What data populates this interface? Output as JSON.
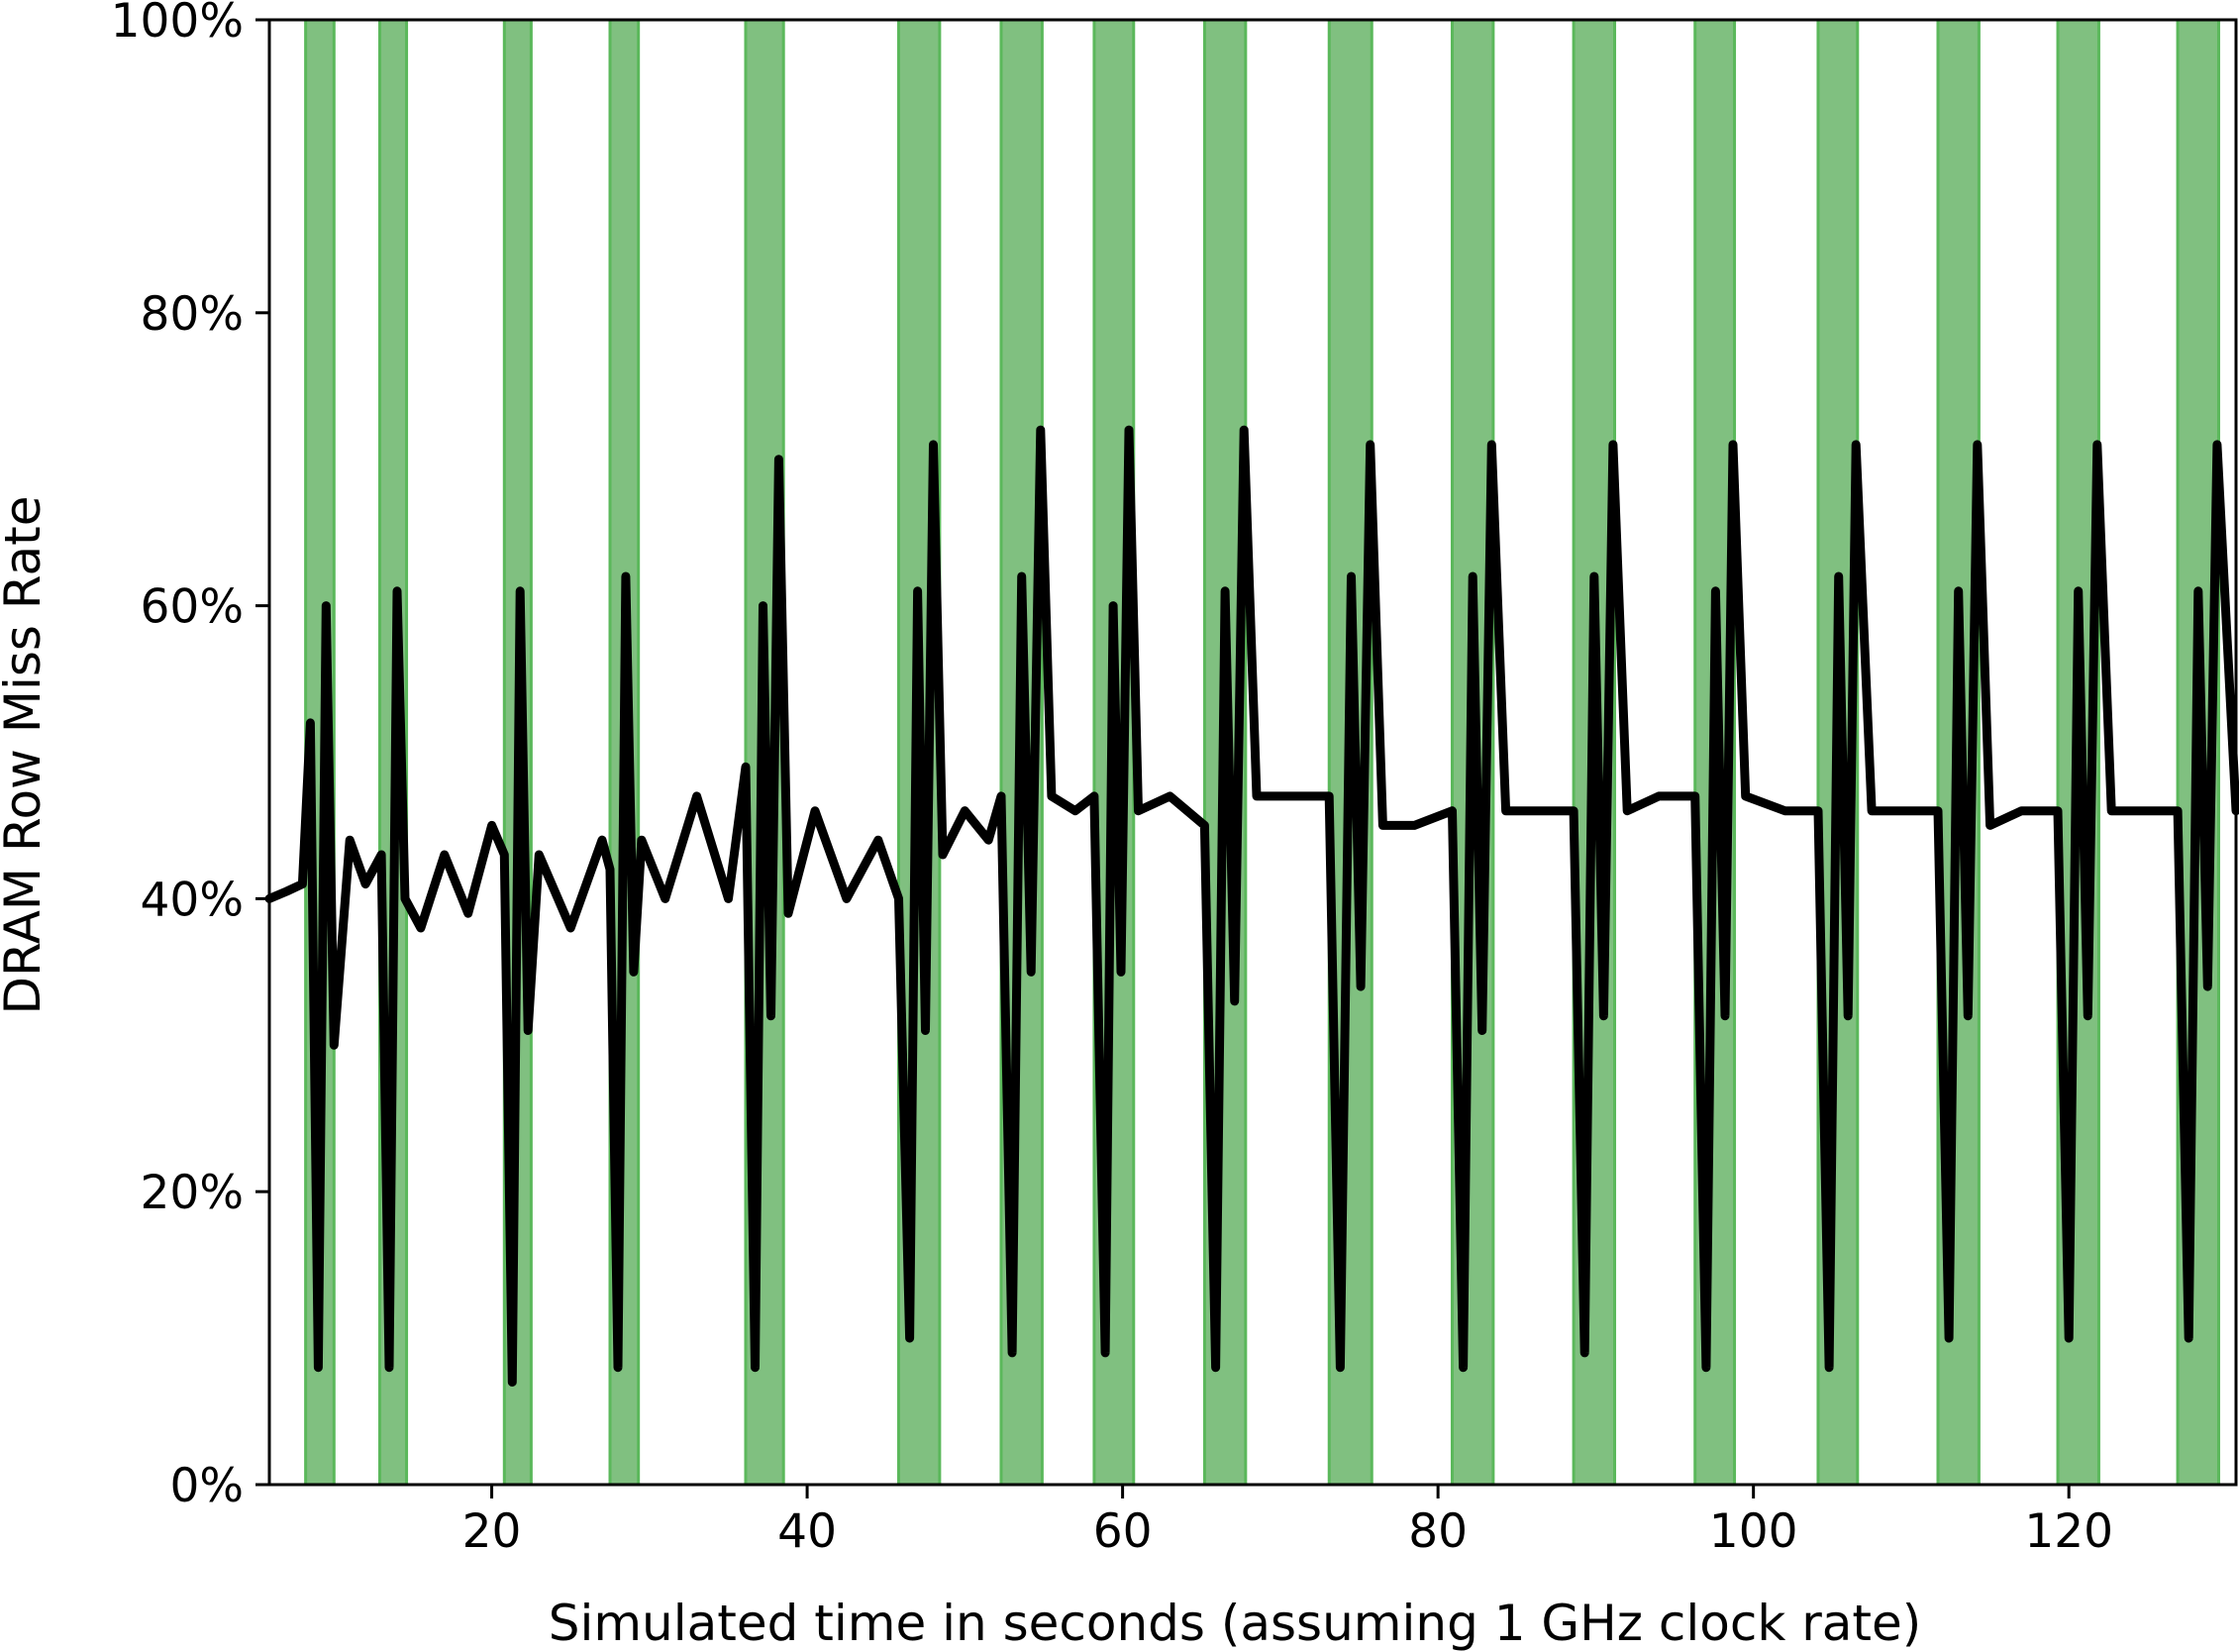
{
  "chart_data": {
    "type": "line",
    "title": "",
    "xlabel": "Simulated time in seconds (assuming 1 GHz clock rate)",
    "ylabel": "DRAM Row Miss Rate",
    "xlim": [
      5.9,
      130.6
    ],
    "ylim": [
      0,
      100
    ],
    "x_ticks": [
      {
        "value": 20,
        "label": "20"
      },
      {
        "value": 40,
        "label": "40"
      },
      {
        "value": 60,
        "label": "60"
      },
      {
        "value": 80,
        "label": "80"
      },
      {
        "value": 100,
        "label": "100"
      },
      {
        "value": 120,
        "label": "120"
      }
    ],
    "y_ticks": [
      {
        "value": 0,
        "label": "0%"
      },
      {
        "value": 20,
        "label": "20%"
      },
      {
        "value": 40,
        "label": "40%"
      },
      {
        "value": 60,
        "label": "60%"
      },
      {
        "value": 80,
        "label": "80%"
      },
      {
        "value": 100,
        "label": "100%"
      }
    ],
    "grid": false,
    "legend": "none",
    "shaded_regions": [
      [
        8.2,
        10.0
      ],
      [
        12.9,
        14.6
      ],
      [
        20.8,
        22.5
      ],
      [
        27.5,
        29.3
      ],
      [
        36.1,
        38.5
      ],
      [
        45.8,
        48.4
      ],
      [
        52.3,
        54.9
      ],
      [
        58.2,
        60.7
      ],
      [
        65.2,
        67.8
      ],
      [
        73.1,
        75.8
      ],
      [
        80.9,
        83.5
      ],
      [
        88.6,
        91.2
      ],
      [
        96.3,
        98.8
      ],
      [
        104.1,
        106.6
      ],
      [
        111.7,
        114.3
      ],
      [
        119.3,
        121.9
      ],
      [
        126.9,
        129.5
      ]
    ],
    "series": [
      {
        "color": "#000000",
        "x": [
          5.9,
          7.0,
          8.0,
          8.5,
          9.0,
          9.5,
          10.0,
          11.0,
          12.0,
          13.0,
          13.5,
          14.0,
          14.5,
          15.5,
          17.0,
          18.5,
          20.0,
          20.8,
          21.3,
          21.8,
          22.3,
          23.0,
          25.0,
          27.0,
          27.5,
          28.0,
          28.5,
          29.0,
          29.5,
          31.0,
          33.0,
          35.0,
          36.1,
          36.7,
          37.2,
          37.7,
          38.2,
          38.8,
          40.5,
          42.5,
          44.5,
          45.8,
          46.5,
          47.0,
          47.5,
          48.0,
          48.6,
          50.0,
          51.5,
          52.3,
          53.0,
          53.6,
          54.2,
          54.8,
          55.5,
          57.0,
          58.2,
          58.9,
          59.4,
          59.9,
          60.4,
          61.0,
          63.0,
          65.2,
          65.9,
          66.5,
          67.1,
          67.7,
          68.5,
          70.5,
          73.1,
          73.8,
          74.5,
          75.1,
          75.7,
          76.5,
          78.5,
          80.9,
          81.6,
          82.2,
          82.8,
          83.4,
          84.3,
          86.5,
          88.6,
          89.3,
          89.9,
          90.5,
          91.1,
          92.0,
          94.0,
          96.3,
          97.0,
          97.6,
          98.2,
          98.7,
          99.5,
          102.0,
          104.1,
          104.8,
          105.4,
          106.0,
          106.5,
          107.5,
          109.5,
          111.7,
          112.4,
          113.0,
          113.6,
          114.2,
          115.0,
          117.0,
          119.3,
          120.0,
          120.6,
          121.2,
          121.8,
          122.7,
          124.7,
          126.9,
          127.6,
          128.2,
          128.8,
          129.4,
          130.6
        ],
        "values": [
          40,
          40.5,
          41,
          52,
          8,
          60,
          30,
          44,
          41,
          43,
          8,
          61,
          40,
          38,
          43,
          39,
          45,
          43,
          7,
          61,
          31,
          43,
          38,
          44,
          42,
          8,
          62,
          35,
          44,
          40,
          47,
          40,
          49,
          8,
          60,
          32,
          70,
          39,
          46,
          40,
          44,
          40,
          10,
          61,
          31,
          71,
          43,
          46,
          44,
          47,
          9,
          62,
          35,
          72,
          47,
          46,
          47,
          9,
          60,
          35,
          72,
          46,
          47,
          45,
          8,
          61,
          33,
          72,
          47,
          47,
          47,
          8,
          62,
          34,
          71,
          45,
          45,
          46,
          8,
          62,
          31,
          71,
          46,
          46,
          46,
          9,
          62,
          32,
          71,
          46,
          47,
          47,
          8,
          61,
          32,
          71,
          47,
          46,
          46,
          8,
          62,
          32,
          71,
          46,
          46,
          46,
          10,
          61,
          32,
          71,
          45,
          46,
          46,
          10,
          61,
          32,
          71,
          46,
          46,
          46,
          10,
          61,
          34,
          71,
          46
        ]
      }
    ]
  }
}
